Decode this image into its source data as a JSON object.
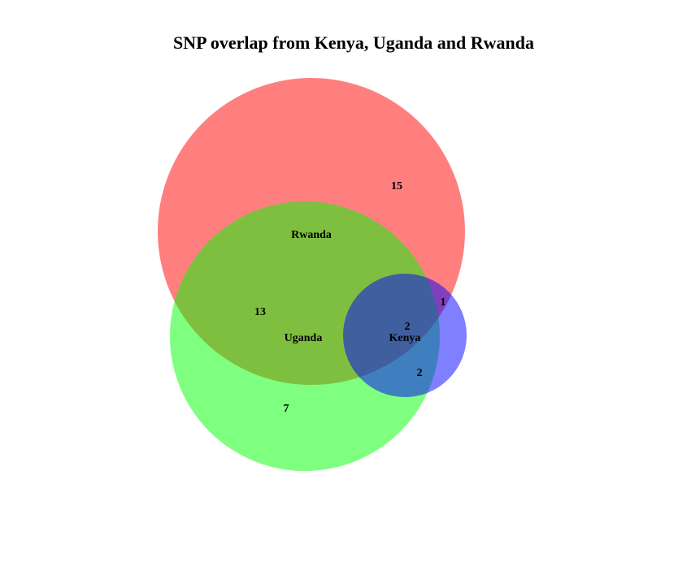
{
  "title": "SNP overlap from Kenya, Uganda and Rwanda",
  "sets": [
    {
      "key": "rwanda",
      "label": "Rwanda",
      "color": "#ff0000",
      "opacity": 0.5
    },
    {
      "key": "uganda",
      "label": "Uganda",
      "color": "#00ff00",
      "opacity": 0.5
    },
    {
      "key": "kenya",
      "label": "Kenya",
      "color": "#0000ff",
      "opacity": 0.5
    }
  ],
  "regions": [
    {
      "sets": [
        "rwanda"
      ],
      "count": "15"
    },
    {
      "sets": [
        "rwanda",
        "uganda"
      ],
      "count": "13"
    },
    {
      "sets": [
        "uganda"
      ],
      "count": "7"
    },
    {
      "sets": [
        "rwanda",
        "kenya"
      ],
      "count": "1"
    },
    {
      "sets": [
        "rwanda",
        "uganda",
        "kenya"
      ],
      "count": "2"
    },
    {
      "sets": [
        "uganda",
        "kenya"
      ],
      "count": "2"
    }
  ]
}
